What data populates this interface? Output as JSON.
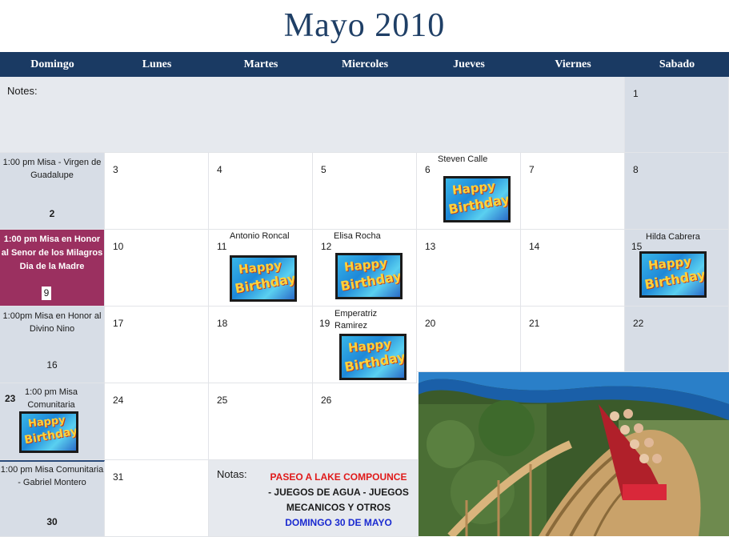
{
  "title": "Mayo 2010",
  "weekdays": [
    "Domingo",
    "Lunes",
    "Martes",
    "Miercoles",
    "Jueves",
    "Viernes",
    "Sabado"
  ],
  "notes_label": "Notes:",
  "days": {
    "d1": "1",
    "d2": "2",
    "d3": "3",
    "d4": "4",
    "d5": "5",
    "d6": "6",
    "d7": "7",
    "d8": "8",
    "d9": "9",
    "d10": "10",
    "d11": "11",
    "d12": "12",
    "d13": "13",
    "d14": "14",
    "d15": "15",
    "d16": "16",
    "d17": "17",
    "d18": "18",
    "d19": "19",
    "d20": "20",
    "d21": "21",
    "d22": "22",
    "d23": "23",
    "d24": "24",
    "d25": "25",
    "d26": "26",
    "d30": "30",
    "d31": "31"
  },
  "events": {
    "sun2": "1:00 pm Misa - Virgen de Guadalupe",
    "sun9": "1:00 pm Misa en Honor al Senor de los Milagros   Dia de la Madre",
    "sun16": "1:00pm  Misa en Honor al Divino Nino",
    "sun23": "1:00 pm Misa Comunitaria",
    "sun30": "1:00 pm Misa Comunitaria - Gabriel Montero"
  },
  "birthdays": {
    "d6": "Steven Calle",
    "d11": "Antonio Roncal",
    "d12": "Elisa Rocha",
    "d15": "Hilda Cabrera",
    "d19": "Emperatriz Ramirez"
  },
  "card_text": {
    "line1": "Happy",
    "line2": "Birthday!"
  },
  "notas": {
    "label": "Notas:",
    "line1": "PASEO A  LAKE COMPOUNCE",
    "line2": "- JUEGOS DE AGUA - JUEGOS MECANICOS Y OTROS",
    "line3": "DOMINGO 30 DE MAYO"
  },
  "colors": {
    "header": "#1a3a63",
    "title": "#1f3f66",
    "mothers_day": "#9b3060",
    "sunday": "#d7dde6"
  }
}
